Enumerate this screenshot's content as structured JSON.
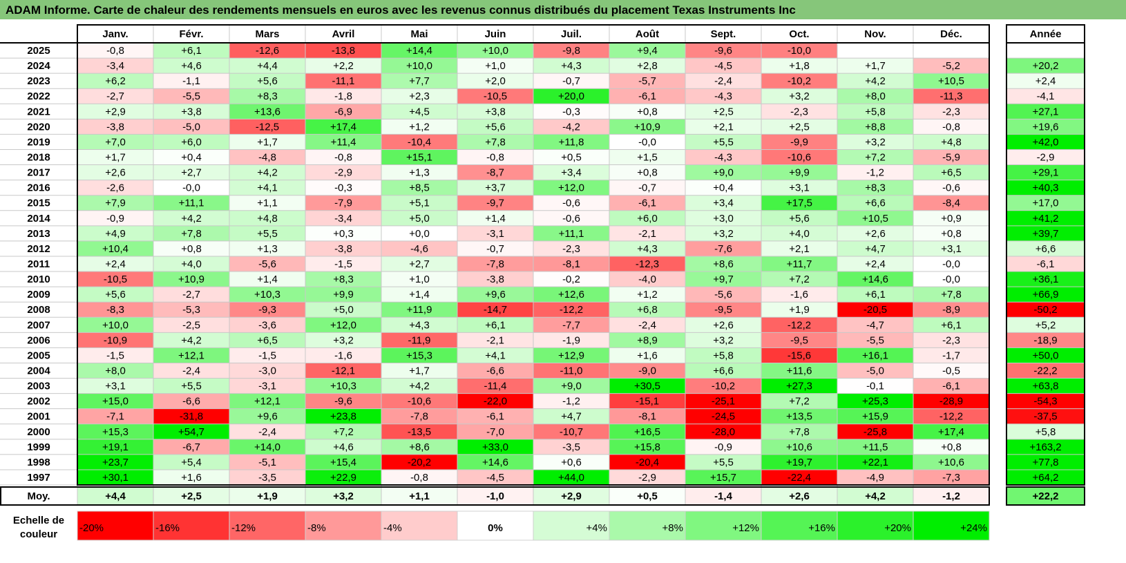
{
  "chart_data": {
    "type": "heatmap",
    "title": "ADAM Informe. Carte de chaleur des rendements mensuels en euros avec les revenus connus distribués du placement Texas Instruments Inc",
    "columns": [
      "Janv.",
      "Févr.",
      "Mars",
      "Avril",
      "Mai",
      "Juin",
      "Juil.",
      "Août",
      "Sept.",
      "Oct.",
      "Nov.",
      "Déc."
    ],
    "year_header": "Année",
    "rows": [
      {
        "year": "2025",
        "months": [
          "-0,8",
          "+6,1",
          "-12,6",
          "-13,8",
          "+14,4",
          "+10,0",
          "-9,8",
          "+9,4",
          "-9,6",
          "-10,0",
          "",
          ""
        ],
        "annual": ""
      },
      {
        "year": "2024",
        "months": [
          "-3,4",
          "+4,6",
          "+4,4",
          "+2,2",
          "+10,0",
          "+1,0",
          "+4,3",
          "+2,8",
          "-4,5",
          "+1,8",
          "+1,7",
          "-5,2"
        ],
        "annual": "+20,2"
      },
      {
        "year": "2023",
        "months": [
          "+6,2",
          "-1,1",
          "+5,6",
          "-11,1",
          "+7,7",
          "+2,0",
          "-0,7",
          "-5,7",
          "-2,4",
          "-10,2",
          "+4,2",
          "+10,5"
        ],
        "annual": "+2,4"
      },
      {
        "year": "2022",
        "months": [
          "-2,7",
          "-5,5",
          "+8,3",
          "-1,8",
          "+2,3",
          "-10,5",
          "+20,0",
          "-6,1",
          "-4,3",
          "+3,2",
          "+8,0",
          "-11,3"
        ],
        "annual": "-4,1"
      },
      {
        "year": "2021",
        "months": [
          "+2,9",
          "+3,8",
          "+13,6",
          "-6,9",
          "+4,5",
          "+3,8",
          "-0,3",
          "+0,8",
          "+2,5",
          "-2,3",
          "+5,8",
          "-2,3"
        ],
        "annual": "+27,1"
      },
      {
        "year": "2020",
        "months": [
          "-3,8",
          "-5,0",
          "-12,5",
          "+17,4",
          "+1,2",
          "+5,6",
          "-4,2",
          "+10,9",
          "+2,1",
          "+2,5",
          "+8,8",
          "-0,8"
        ],
        "annual": "+19,6"
      },
      {
        "year": "2019",
        "months": [
          "+7,0",
          "+6,0",
          "+1,7",
          "+11,4",
          "-10,4",
          "+7,8",
          "+11,8",
          "-0,0",
          "+5,5",
          "-9,9",
          "+3,2",
          "+4,8"
        ],
        "annual": "+42,0"
      },
      {
        "year": "2018",
        "months": [
          "+1,7",
          "+0,4",
          "-4,8",
          "-0,8",
          "+15,1",
          "-0,8",
          "+0,5",
          "+1,5",
          "-4,3",
          "-10,6",
          "+7,2",
          "-5,9"
        ],
        "annual": "-2,9"
      },
      {
        "year": "2017",
        "months": [
          "+2,6",
          "+2,7",
          "+4,2",
          "-2,9",
          "+1,3",
          "-8,7",
          "+3,4",
          "+0,8",
          "+9,0",
          "+9,9",
          "-1,2",
          "+6,5"
        ],
        "annual": "+29,1"
      },
      {
        "year": "2016",
        "months": [
          "-2,6",
          "-0,0",
          "+4,1",
          "-0,3",
          "+8,5",
          "+3,7",
          "+12,0",
          "-0,7",
          "+0,4",
          "+3,1",
          "+8,3",
          "-0,6"
        ],
        "annual": "+40,3"
      },
      {
        "year": "2015",
        "months": [
          "+7,9",
          "+11,1",
          "+1,1",
          "-7,9",
          "+5,1",
          "-9,7",
          "-0,6",
          "-6,1",
          "+3,4",
          "+17,5",
          "+6,6",
          "-8,4"
        ],
        "annual": "+17,0"
      },
      {
        "year": "2014",
        "months": [
          "-0,9",
          "+4,2",
          "+4,8",
          "-3,4",
          "+5,0",
          "+1,4",
          "-0,6",
          "+6,0",
          "+3,0",
          "+5,6",
          "+10,5",
          "+0,9"
        ],
        "annual": "+41,2"
      },
      {
        "year": "2013",
        "months": [
          "+4,9",
          "+7,8",
          "+5,5",
          "+0,3",
          "+0,0",
          "-3,1",
          "+11,1",
          "-2,1",
          "+3,2",
          "+4,0",
          "+2,6",
          "+0,8"
        ],
        "annual": "+39,7"
      },
      {
        "year": "2012",
        "months": [
          "+10,4",
          "+0,8",
          "+1,3",
          "-3,8",
          "-4,6",
          "-0,7",
          "-2,3",
          "+4,3",
          "-7,6",
          "+2,1",
          "+4,7",
          "+3,1"
        ],
        "annual": "+6,6"
      },
      {
        "year": "2011",
        "months": [
          "+2,4",
          "+4,0",
          "-5,6",
          "-1,5",
          "+2,7",
          "-7,8",
          "-8,1",
          "-12,3",
          "+8,6",
          "+11,7",
          "+2,4",
          "-0,0"
        ],
        "annual": "-6,1"
      },
      {
        "year": "2010",
        "months": [
          "-10,5",
          "+10,9",
          "+1,4",
          "+8,3",
          "+1,0",
          "-3,8",
          "-0,2",
          "-4,0",
          "+9,7",
          "+7,2",
          "+14,6",
          "-0,0"
        ],
        "annual": "+36,1"
      },
      {
        "year": "2009",
        "months": [
          "+5,6",
          "-2,7",
          "+10,3",
          "+9,9",
          "+1,4",
          "+9,6",
          "+12,6",
          "+1,2",
          "-5,6",
          "-1,6",
          "+6,1",
          "+7,8"
        ],
        "annual": "+66,9"
      },
      {
        "year": "2008",
        "months": [
          "-8,3",
          "-5,3",
          "-9,3",
          "+5,0",
          "+11,9",
          "-14,7",
          "-12,2",
          "+6,8",
          "-9,5",
          "+1,9",
          "-20,5",
          "-8,9"
        ],
        "annual": "-50,2"
      },
      {
        "year": "2007",
        "months": [
          "+10,0",
          "-2,5",
          "-3,6",
          "+12,0",
          "+4,3",
          "+6,1",
          "-7,7",
          "-2,4",
          "+2,6",
          "-12,2",
          "-4,7",
          "+6,1"
        ],
        "annual": "+5,2"
      },
      {
        "year": "2006",
        "months": [
          "-10,9",
          "+4,2",
          "+6,5",
          "+3,2",
          "-11,9",
          "-2,1",
          "-1,9",
          "+8,9",
          "+3,2",
          "-9,5",
          "-5,5",
          "-2,3"
        ],
        "annual": "-18,9"
      },
      {
        "year": "2005",
        "months": [
          "-1,5",
          "+12,1",
          "-1,5",
          "-1,6",
          "+15,3",
          "+4,1",
          "+12,9",
          "+1,6",
          "+5,8",
          "-15,6",
          "+16,1",
          "-1,7"
        ],
        "annual": "+50,0"
      },
      {
        "year": "2004",
        "months": [
          "+8,0",
          "-2,4",
          "-3,0",
          "-12,1",
          "+1,7",
          "-6,6",
          "-11,0",
          "-9,0",
          "+6,6",
          "+11,6",
          "-5,0",
          "-0,5"
        ],
        "annual": "-22,2"
      },
      {
        "year": "2003",
        "months": [
          "+3,1",
          "+5,5",
          "-3,1",
          "+10,3",
          "+4,2",
          "-11,4",
          "+9,0",
          "+30,5",
          "-10,2",
          "+27,3",
          "-0,1",
          "-6,1"
        ],
        "annual": "+63,8"
      },
      {
        "year": "2002",
        "months": [
          "+15,0",
          "-6,6",
          "+12,1",
          "-9,6",
          "-10,6",
          "-22,0",
          "-1,2",
          "-15,1",
          "-25,1",
          "+7,2",
          "+25,3",
          "-28,9"
        ],
        "annual": "-54,3"
      },
      {
        "year": "2001",
        "months": [
          "-7,1",
          "-31,8",
          "+9,6",
          "+23,8",
          "-7,8",
          "-6,1",
          "+4,7",
          "-8,1",
          "-24,5",
          "+13,5",
          "+15,9",
          "-12,2"
        ],
        "annual": "-37,5"
      },
      {
        "year": "2000",
        "months": [
          "+15,3",
          "+54,7",
          "-2,4",
          "+7,2",
          "-13,5",
          "-7,0",
          "-10,7",
          "+16,5",
          "-28,0",
          "+7,8",
          "-25,8",
          "+17,4"
        ],
        "annual": "+5,8"
      },
      {
        "year": "1999",
        "months": [
          "+19,1",
          "-6,7",
          "+14,0",
          "+4,6",
          "+8,6",
          "+33,0",
          "-3,5",
          "+15,8",
          "-0,9",
          "+10,6",
          "+11,5",
          "+0,8"
        ],
        "annual": "+163,2"
      },
      {
        "year": "1998",
        "months": [
          "+23,7",
          "+5,4",
          "-5,1",
          "+15,4",
          "-20,2",
          "+14,6",
          "+0,6",
          "-20,4",
          "+5,5",
          "+19,7",
          "+22,1",
          "+10,6"
        ],
        "annual": "+77,8"
      },
      {
        "year": "1997",
        "months": [
          "+30,1",
          "+1,6",
          "-3,5",
          "+22,9",
          "-0,8",
          "-4,5",
          "+44,0",
          "-2,9",
          "+15,7",
          "-22,4",
          "-4,9",
          "-7,3"
        ],
        "annual": "+64,2"
      }
    ],
    "average": {
      "label": "Moy.",
      "months": [
        "+4,4",
        "+2,5",
        "+1,9",
        "+3,2",
        "+1,1",
        "-1,0",
        "+2,9",
        "+0,5",
        "-1,4",
        "+2,6",
        "+4,2",
        "-1,2"
      ],
      "annual": "+22,2"
    },
    "scale": {
      "label_line1": "Echelle de",
      "label_line2": "couleur",
      "steps": [
        {
          "label": "-20%",
          "value": -20
        },
        {
          "label": "-16%",
          "value": -16
        },
        {
          "label": "-12%",
          "value": -12
        },
        {
          "label": "-8%",
          "value": -8
        },
        {
          "label": "-4%",
          "value": -4
        },
        {
          "label": "0%",
          "value": 0
        },
        {
          "label": "+4%",
          "value": 4
        },
        {
          "label": "+8%",
          "value": 8
        },
        {
          "label": "+12%",
          "value": 12
        },
        {
          "label": "+16%",
          "value": 16
        },
        {
          "label": "+20%",
          "value": 20
        },
        {
          "label": "+24%",
          "value": 24
        }
      ]
    },
    "colors": {
      "title_bar": "#86c67a",
      "negative_max": "#ff0000",
      "neutral": "#ffffff",
      "positive_max": "#00ee00"
    }
  }
}
